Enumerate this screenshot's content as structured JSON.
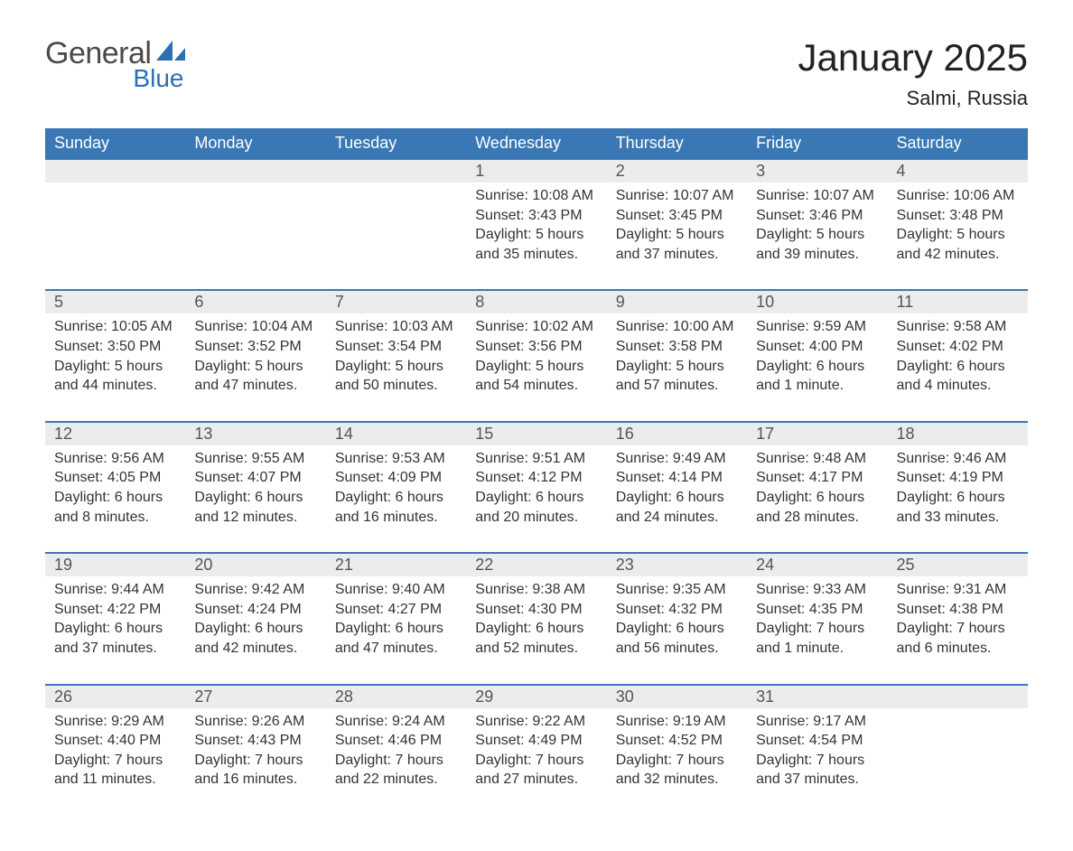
{
  "logo": {
    "text1": "General",
    "text2": "Blue"
  },
  "title": "January 2025",
  "location": "Salmi, Russia",
  "colors": {
    "header_bg": "#3a78b5",
    "header_text": "#ffffff",
    "numrow_bg": "#ececec",
    "numrow_border": "#3a78b5",
    "body_text": "#333333",
    "title_text": "#222222"
  },
  "fonts": {
    "title_size": 42,
    "location_size": 22,
    "dow_size": 18,
    "daynum_size": 18,
    "body_size": 16
  },
  "days_of_week": [
    "Sunday",
    "Monday",
    "Tuesday",
    "Wednesday",
    "Thursday",
    "Friday",
    "Saturday"
  ],
  "weeks": [
    [
      {
        "num": "",
        "sunrise": "",
        "sunset": "",
        "daylight": ""
      },
      {
        "num": "",
        "sunrise": "",
        "sunset": "",
        "daylight": ""
      },
      {
        "num": "",
        "sunrise": "",
        "sunset": "",
        "daylight": ""
      },
      {
        "num": "1",
        "sunrise": "Sunrise: 10:08 AM",
        "sunset": "Sunset: 3:43 PM",
        "daylight": "Daylight: 5 hours and 35 minutes."
      },
      {
        "num": "2",
        "sunrise": "Sunrise: 10:07 AM",
        "sunset": "Sunset: 3:45 PM",
        "daylight": "Daylight: 5 hours and 37 minutes."
      },
      {
        "num": "3",
        "sunrise": "Sunrise: 10:07 AM",
        "sunset": "Sunset: 3:46 PM",
        "daylight": "Daylight: 5 hours and 39 minutes."
      },
      {
        "num": "4",
        "sunrise": "Sunrise: 10:06 AM",
        "sunset": "Sunset: 3:48 PM",
        "daylight": "Daylight: 5 hours and 42 minutes."
      }
    ],
    [
      {
        "num": "5",
        "sunrise": "Sunrise: 10:05 AM",
        "sunset": "Sunset: 3:50 PM",
        "daylight": "Daylight: 5 hours and 44 minutes."
      },
      {
        "num": "6",
        "sunrise": "Sunrise: 10:04 AM",
        "sunset": "Sunset: 3:52 PM",
        "daylight": "Daylight: 5 hours and 47 minutes."
      },
      {
        "num": "7",
        "sunrise": "Sunrise: 10:03 AM",
        "sunset": "Sunset: 3:54 PM",
        "daylight": "Daylight: 5 hours and 50 minutes."
      },
      {
        "num": "8",
        "sunrise": "Sunrise: 10:02 AM",
        "sunset": "Sunset: 3:56 PM",
        "daylight": "Daylight: 5 hours and 54 minutes."
      },
      {
        "num": "9",
        "sunrise": "Sunrise: 10:00 AM",
        "sunset": "Sunset: 3:58 PM",
        "daylight": "Daylight: 5 hours and 57 minutes."
      },
      {
        "num": "10",
        "sunrise": "Sunrise: 9:59 AM",
        "sunset": "Sunset: 4:00 PM",
        "daylight": "Daylight: 6 hours and 1 minute."
      },
      {
        "num": "11",
        "sunrise": "Sunrise: 9:58 AM",
        "sunset": "Sunset: 4:02 PM",
        "daylight": "Daylight: 6 hours and 4 minutes."
      }
    ],
    [
      {
        "num": "12",
        "sunrise": "Sunrise: 9:56 AM",
        "sunset": "Sunset: 4:05 PM",
        "daylight": "Daylight: 6 hours and 8 minutes."
      },
      {
        "num": "13",
        "sunrise": "Sunrise: 9:55 AM",
        "sunset": "Sunset: 4:07 PM",
        "daylight": "Daylight: 6 hours and 12 minutes."
      },
      {
        "num": "14",
        "sunrise": "Sunrise: 9:53 AM",
        "sunset": "Sunset: 4:09 PM",
        "daylight": "Daylight: 6 hours and 16 minutes."
      },
      {
        "num": "15",
        "sunrise": "Sunrise: 9:51 AM",
        "sunset": "Sunset: 4:12 PM",
        "daylight": "Daylight: 6 hours and 20 minutes."
      },
      {
        "num": "16",
        "sunrise": "Sunrise: 9:49 AM",
        "sunset": "Sunset: 4:14 PM",
        "daylight": "Daylight: 6 hours and 24 minutes."
      },
      {
        "num": "17",
        "sunrise": "Sunrise: 9:48 AM",
        "sunset": "Sunset: 4:17 PM",
        "daylight": "Daylight: 6 hours and 28 minutes."
      },
      {
        "num": "18",
        "sunrise": "Sunrise: 9:46 AM",
        "sunset": "Sunset: 4:19 PM",
        "daylight": "Daylight: 6 hours and 33 minutes."
      }
    ],
    [
      {
        "num": "19",
        "sunrise": "Sunrise: 9:44 AM",
        "sunset": "Sunset: 4:22 PM",
        "daylight": "Daylight: 6 hours and 37 minutes."
      },
      {
        "num": "20",
        "sunrise": "Sunrise: 9:42 AM",
        "sunset": "Sunset: 4:24 PM",
        "daylight": "Daylight: 6 hours and 42 minutes."
      },
      {
        "num": "21",
        "sunrise": "Sunrise: 9:40 AM",
        "sunset": "Sunset: 4:27 PM",
        "daylight": "Daylight: 6 hours and 47 minutes."
      },
      {
        "num": "22",
        "sunrise": "Sunrise: 9:38 AM",
        "sunset": "Sunset: 4:30 PM",
        "daylight": "Daylight: 6 hours and 52 minutes."
      },
      {
        "num": "23",
        "sunrise": "Sunrise: 9:35 AM",
        "sunset": "Sunset: 4:32 PM",
        "daylight": "Daylight: 6 hours and 56 minutes."
      },
      {
        "num": "24",
        "sunrise": "Sunrise: 9:33 AM",
        "sunset": "Sunset: 4:35 PM",
        "daylight": "Daylight: 7 hours and 1 minute."
      },
      {
        "num": "25",
        "sunrise": "Sunrise: 9:31 AM",
        "sunset": "Sunset: 4:38 PM",
        "daylight": "Daylight: 7 hours and 6 minutes."
      }
    ],
    [
      {
        "num": "26",
        "sunrise": "Sunrise: 9:29 AM",
        "sunset": "Sunset: 4:40 PM",
        "daylight": "Daylight: 7 hours and 11 minutes."
      },
      {
        "num": "27",
        "sunrise": "Sunrise: 9:26 AM",
        "sunset": "Sunset: 4:43 PM",
        "daylight": "Daylight: 7 hours and 16 minutes."
      },
      {
        "num": "28",
        "sunrise": "Sunrise: 9:24 AM",
        "sunset": "Sunset: 4:46 PM",
        "daylight": "Daylight: 7 hours and 22 minutes."
      },
      {
        "num": "29",
        "sunrise": "Sunrise: 9:22 AM",
        "sunset": "Sunset: 4:49 PM",
        "daylight": "Daylight: 7 hours and 27 minutes."
      },
      {
        "num": "30",
        "sunrise": "Sunrise: 9:19 AM",
        "sunset": "Sunset: 4:52 PM",
        "daylight": "Daylight: 7 hours and 32 minutes."
      },
      {
        "num": "31",
        "sunrise": "Sunrise: 9:17 AM",
        "sunset": "Sunset: 4:54 PM",
        "daylight": "Daylight: 7 hours and 37 minutes."
      },
      {
        "num": "",
        "sunrise": "",
        "sunset": "",
        "daylight": ""
      }
    ]
  ]
}
